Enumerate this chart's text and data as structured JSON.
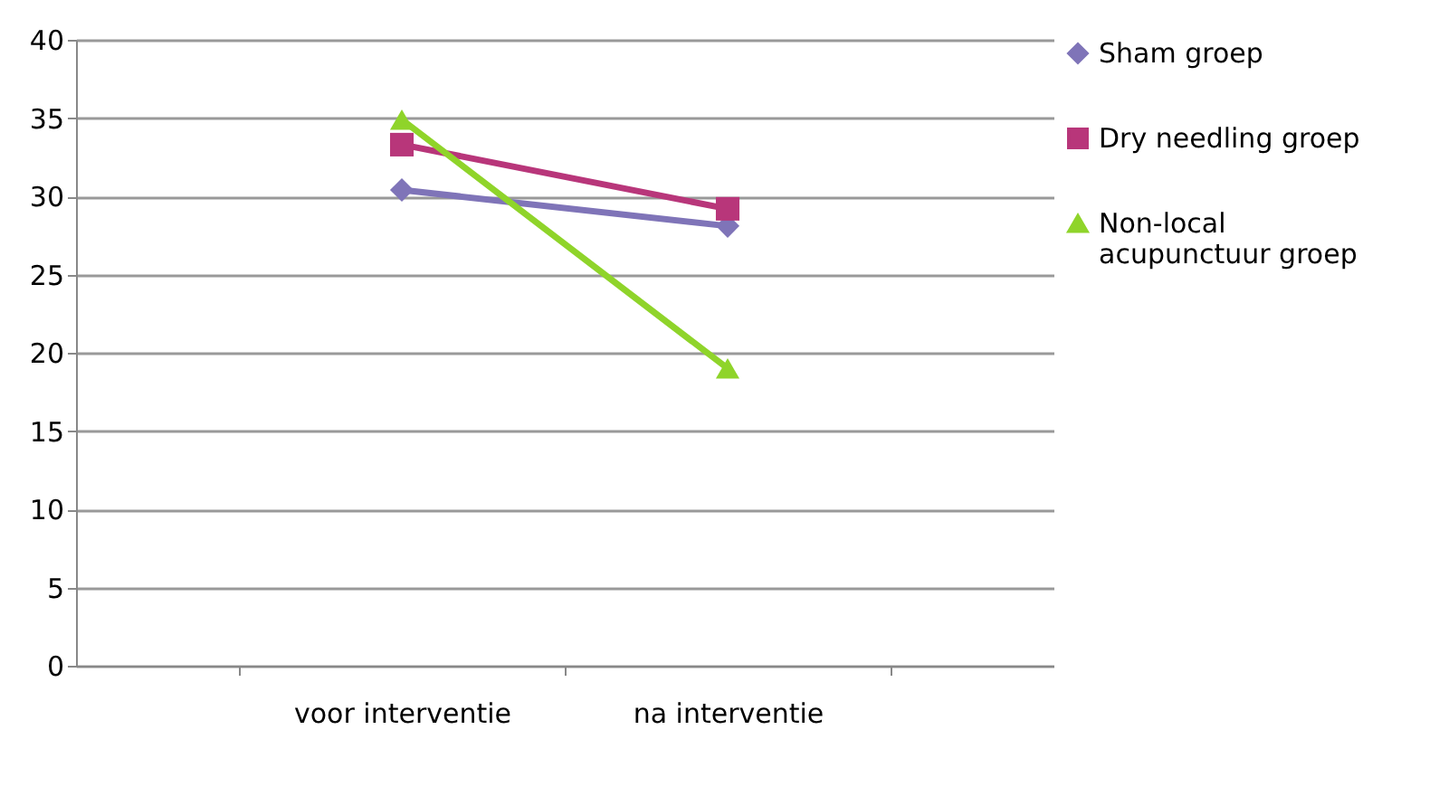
{
  "chart_data": {
    "type": "line",
    "categories": [
      "voor interventie",
      "na interventie"
    ],
    "series": [
      {
        "name": "Sham groep",
        "color": "#7f74b8",
        "marker": "diamond",
        "values": [
          30.4,
          28.1
        ]
      },
      {
        "name": "Dry needling groep",
        "color": "#b8367a",
        "marker": "square",
        "values": [
          33.3,
          29.2
        ]
      },
      {
        "name": "Non-local acupunctuur groep",
        "color": "#8fd42a",
        "marker": "triangle",
        "values": [
          34.9,
          19.0
        ]
      }
    ],
    "ylim": [
      0,
      40
    ],
    "yticks": [
      0,
      5,
      10,
      15,
      20,
      25,
      30,
      35,
      40
    ],
    "grid": "y",
    "legend": "right"
  }
}
